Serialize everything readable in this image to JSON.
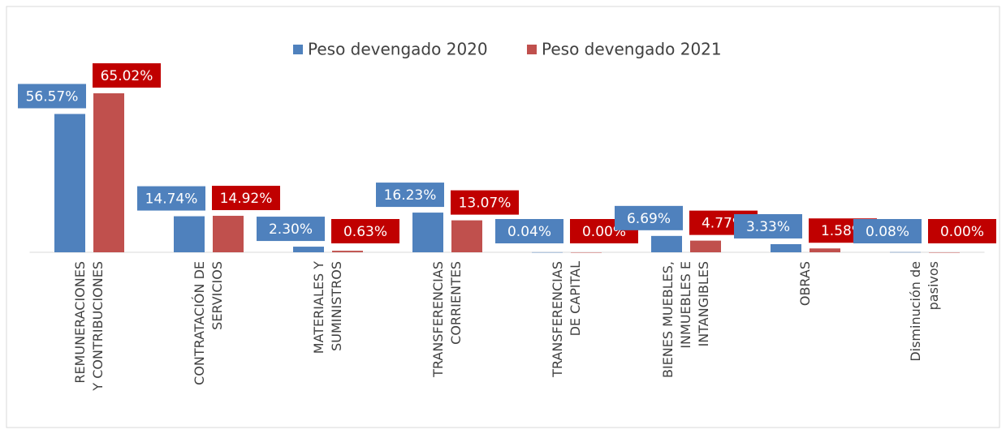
{
  "chart_data": {
    "type": "bar",
    "categories": [
      "REMUNERACIONES\nY CONTRIBUCIONES",
      "CONTRATACIÓN DE\nSERVICIOS",
      "MATERIALES Y\nSUMINISTROS",
      "TRANSFERENCIAS\nCORRIENTES",
      "TRANSFERENCIAS\nDE CAPITAL",
      "BIENES MUEBLES,\nINMUEBLES E\nINTANGIBLES",
      "OBRAS",
      "Disminución de\npasivos"
    ],
    "series": [
      {
        "name": "Peso devengado 2020",
        "color": "#4f81bd",
        "label_fill": "#4f81bd",
        "values": [
          56.57,
          14.74,
          2.3,
          16.23,
          0.04,
          6.69,
          3.33,
          0.08
        ],
        "value_labels": [
          "56.57%",
          "14.74%",
          "2.30%",
          "16.23%",
          "0.04%",
          "6.69%",
          "3.33%",
          "0.08%"
        ]
      },
      {
        "name": "Peso devengado 2021",
        "color": "#c0504d",
        "label_fill": "#c00000",
        "values": [
          65.02,
          14.92,
          0.63,
          13.07,
          0.0,
          4.77,
          1.58,
          0.0
        ],
        "value_labels": [
          "65.02%",
          "14.92%",
          "0.63%",
          "13.07%",
          "0.00%",
          "4.77%",
          "1.58%",
          "0.00%"
        ]
      }
    ],
    "ylim": [
      0,
      70
    ],
    "legend": "top"
  }
}
